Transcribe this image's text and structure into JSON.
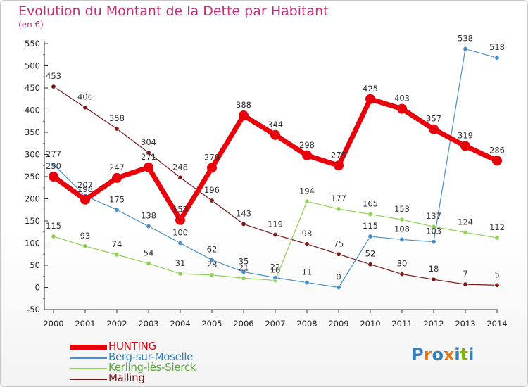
{
  "title": "Evolution du Montant de la Dette par Habitant",
  "unit": "(en €)",
  "logo": {
    "text": "Proxiti",
    "colors": [
      "#2f7fc1",
      "#e07a18",
      "#2f7fc1",
      "#e07a18",
      "#2f7fc1",
      "#7ab800",
      "#2f7fc1"
    ]
  },
  "chart_data": {
    "type": "line",
    "x": [
      "2000",
      "2001",
      "2002",
      "2003",
      "2004",
      "2005",
      "2006",
      "2007",
      "2008",
      "2009",
      "2010",
      "2011",
      "2012",
      "2013",
      "2014"
    ],
    "ylim": [
      -50,
      550
    ],
    "yticks": [
      -50,
      0,
      50,
      100,
      150,
      200,
      250,
      300,
      350,
      400,
      450,
      500,
      550
    ],
    "grid": false,
    "legend_position": "bottom-left",
    "series": [
      {
        "name": "Malling",
        "color": "#7a1a1a",
        "values": [
          453,
          406,
          358,
          304,
          248,
          196,
          143,
          119,
          98,
          75,
          52,
          30,
          18,
          7,
          5
        ]
      },
      {
        "name": "Kerling-lès-Sierck",
        "color": "#8fd155",
        "values": [
          115,
          93,
          74,
          54,
          31,
          28,
          21,
          16,
          194,
          177,
          165,
          153,
          137,
          124,
          112
        ]
      },
      {
        "name": "Berg-sur-Moselle",
        "color": "#4a90c8",
        "values": [
          277,
          207,
          175,
          138,
          100,
          62,
          35,
          22,
          11,
          0,
          115,
          108,
          103,
          538,
          518
        ]
      },
      {
        "name": "HUNTING",
        "color": "#e8000b",
        "values": [
          250,
          198,
          247,
          271,
          152,
          270,
          388,
          344,
          298,
          275,
          425,
          403,
          357,
          319,
          286
        ]
      }
    ]
  }
}
